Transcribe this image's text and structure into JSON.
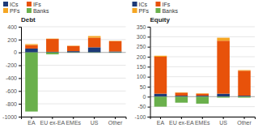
{
  "chart_data": [
    {
      "type": "bar",
      "stacked": true,
      "title": "Debt",
      "categories": [
        "EA",
        "EU ex-EA",
        "EMEs",
        "US",
        "Other"
      ],
      "series": [
        {
          "name": "ICs",
          "color": "#1e3a78",
          "values": [
            60,
            10,
            20,
            80,
            15
          ]
        },
        {
          "name": "IFs",
          "color": "#e8520a",
          "values": [
            55,
            200,
            80,
            150,
            160
          ]
        },
        {
          "name": "PFs",
          "color": "#f5a623",
          "values": [
            15,
            5,
            5,
            25,
            5
          ]
        },
        {
          "name": "Banks",
          "color": "#6ab04c",
          "values": [
            -920,
            -30,
            -5,
            -5,
            -5
          ]
        }
      ],
      "ylim": [
        -1000,
        400
      ],
      "yticks": [
        -1000,
        -800,
        -600,
        -400,
        -200,
        0,
        200,
        400
      ],
      "grid": true,
      "legend": "upper left"
    },
    {
      "type": "bar",
      "stacked": true,
      "title": "Equity",
      "categories": [
        "EA",
        "EU ex-EA",
        "EMEs",
        "US",
        "Other"
      ],
      "series": [
        {
          "name": "ICs",
          "color": "#1e3a78",
          "values": [
            15,
            5,
            5,
            15,
            5
          ]
        },
        {
          "name": "IFs",
          "color": "#e8520a",
          "values": [
            185,
            15,
            10,
            265,
            125
          ]
        },
        {
          "name": "PFs",
          "color": "#f5a623",
          "values": [
            5,
            2,
            2,
            15,
            3
          ]
        },
        {
          "name": "Banks",
          "color": "#6ab04c",
          "values": [
            -50,
            -30,
            -35,
            -5,
            -5
          ]
        }
      ],
      "ylim": [
        -100,
        350
      ],
      "yticks": [
        -100,
        -50,
        0,
        50,
        100,
        150,
        200,
        250,
        300,
        350
      ],
      "grid": true,
      "legend": "upper left"
    }
  ]
}
